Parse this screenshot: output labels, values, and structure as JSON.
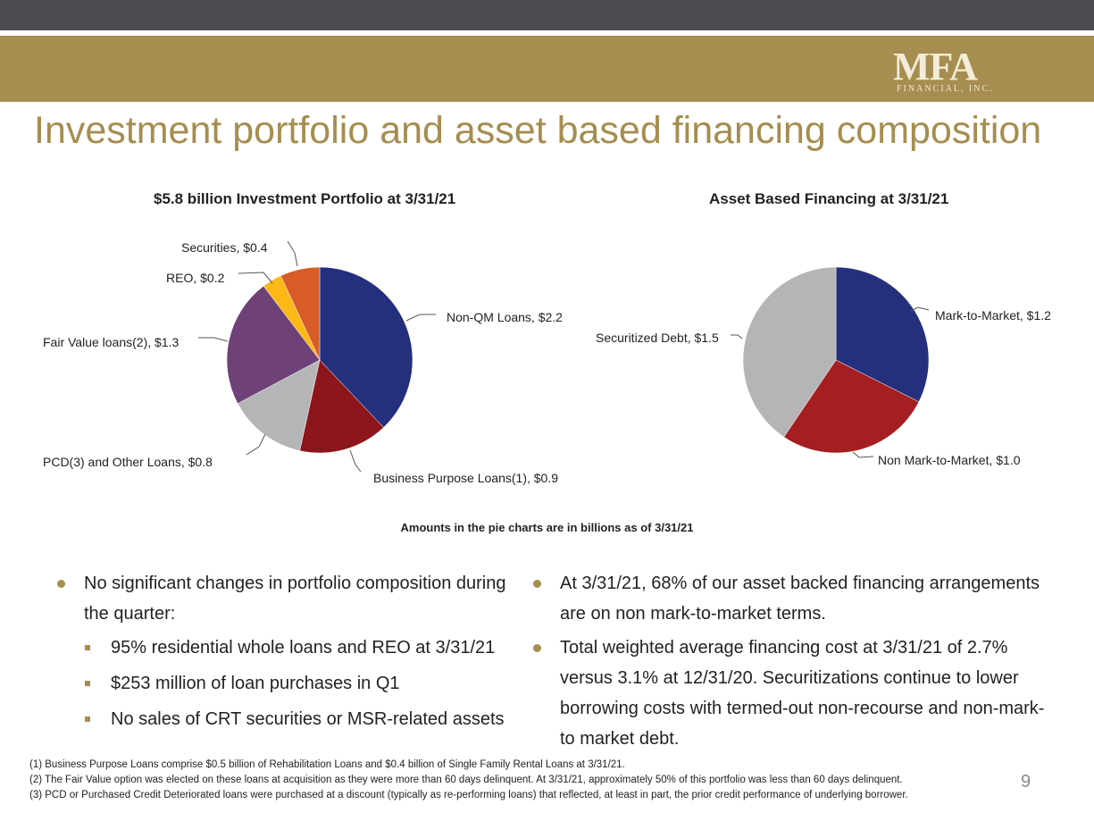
{
  "header": {
    "logo_main": "MFA",
    "logo_sub": "FINANCIAL, INC.",
    "title": "Investment portfolio and asset based financing composition"
  },
  "colors": {
    "header_gray": "#4a4c52",
    "gold": "#a68d50",
    "navy": "#24307d",
    "dark_red": "#8c161b",
    "red": "#a51e22",
    "light_gray": "#b5b5b7",
    "purple": "#6e4279",
    "yellow": "#fcb816",
    "orange": "#d85c27"
  },
  "chart_data": [
    {
      "type": "pie",
      "title": "$5.8 billion Investment Portfolio at 3/31/21",
      "units": "billions",
      "slices": [
        {
          "label": "Non-QM Loans, $2.2",
          "name": "Non-QM Loans",
          "value": 2.2,
          "color": "#24307d"
        },
        {
          "label": "Business Purpose Loans(1), $0.9",
          "name": "Business Purpose Loans(1)",
          "value": 0.9,
          "color": "#8c161b"
        },
        {
          "label": "PCD(3) and Other Loans, $0.8",
          "name": "PCD(3) and Other Loans",
          "value": 0.8,
          "color": "#b5b5b7"
        },
        {
          "label": "Fair Value loans(2), $1.3",
          "name": "Fair Value loans(2)",
          "value": 1.3,
          "color": "#6e4279"
        },
        {
          "label": "REO, $0.2",
          "name": "REO",
          "value": 0.2,
          "color": "#fcb816"
        },
        {
          "label": "Securities, $0.4",
          "name": "Securities",
          "value": 0.4,
          "color": "#d85c27"
        }
      ]
    },
    {
      "type": "pie",
      "title": "Asset Based Financing at 3/31/21",
      "units": "billions",
      "slices": [
        {
          "label": "Mark-to-Market, $1.2",
          "name": "Mark-to-Market",
          "value": 1.2,
          "color": "#24307d"
        },
        {
          "label": "Non Mark-to-Market, $1.0",
          "name": "Non Mark-to-Market",
          "value": 1.0,
          "color": "#a51e22"
        },
        {
          "label": "Securitized Debt, $1.5",
          "name": "Securitized Debt",
          "value": 1.5,
          "color": "#b5b5b7"
        }
      ]
    }
  ],
  "note": "Amounts in the pie charts are in billions as of 3/31/21",
  "left_bullets": {
    "main": "No significant changes in portfolio composition during the quarter:",
    "subs": [
      "95% residential whole loans and REO at 3/31/21",
      "$253 million of loan purchases in Q1",
      "No sales of CRT securities or MSR-related assets"
    ]
  },
  "right_bullets": [
    "At 3/31/21, 68% of our asset backed financing arrangements are on non mark-to-market terms.",
    "Total weighted average financing cost at 3/31/21 of 2.7% versus 3.1% at 12/31/20.  Securitizations continue to lower borrowing costs with termed-out non-recourse and non-mark-to market debt."
  ],
  "footnotes": [
    "(1) Business Purpose Loans comprise $0.5 billion of Rehabilitation Loans and $0.4 billion of Single Family Rental Loans at 3/31/21.",
    "(2) The Fair Value option was elected on these loans at acquisition as they were more than 60 days delinquent. At 3/31/21, approximately 50% of this portfolio was less than 60 days delinquent.",
    "(3) PCD or Purchased Credit Deteriorated loans were purchased at a discount (typically as re-performing loans) that reflected, at least in part, the prior credit performance of underlying borrower."
  ],
  "page_number": "9"
}
